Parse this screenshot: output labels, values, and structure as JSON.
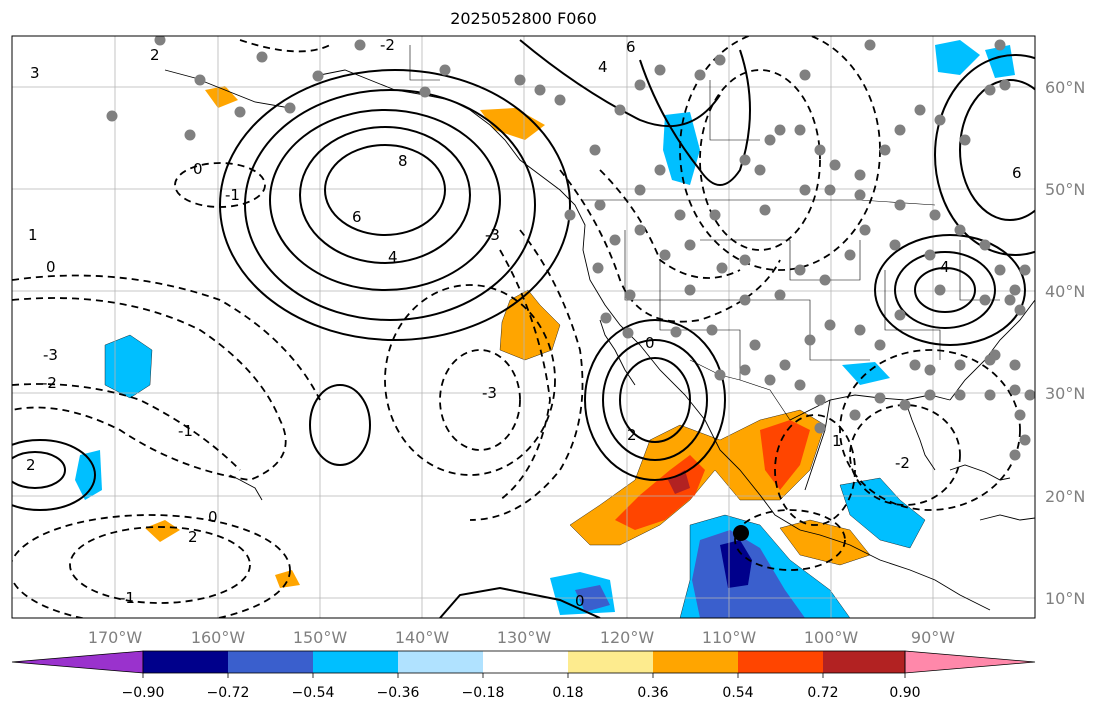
{
  "title": "2025052800 F060",
  "lat_labels": [
    "60°N",
    "50°N",
    "40°N",
    "30°N",
    "20°N",
    "10°N"
  ],
  "lon_labels": [
    "170°W",
    "160°W",
    "150°W",
    "140°W",
    "130°W",
    "120°W",
    "110°W",
    "100°W",
    "90°W"
  ],
  "contour_labels": [
    "2",
    "-2",
    "3",
    "0",
    "-1",
    "1",
    "8",
    "6",
    "4",
    "-3",
    "-3",
    "0",
    "2",
    "4",
    "6",
    "6",
    "-1",
    "2",
    "0",
    "-2",
    "-1",
    "2",
    "0",
    "1",
    "-2",
    "-3",
    "0",
    "4"
  ],
  "colorbar": {
    "tick_labels": [
      "−0.90",
      "−0.72",
      "−0.54",
      "−0.36",
      "−0.18",
      "0.18",
      "0.36",
      "0.54",
      "0.72",
      "0.90"
    ],
    "colors": [
      "#9a32cd",
      "#00008b",
      "#3a5fcd",
      "#00bfff",
      "#b0e2ff",
      "#ffffff",
      "#fdeb8e",
      "#ffa500",
      "#ff4500",
      "#b22222",
      "#ff88aa"
    ]
  },
  "fill_colors": {
    "orange": "#ffa500",
    "red_orange": "#ff4500",
    "dark_red": "#b22222",
    "deep_sky": "#00bfff",
    "royal_blue": "#3a5fcd",
    "navy": "#00008b",
    "marker_gray": "#808080"
  }
}
